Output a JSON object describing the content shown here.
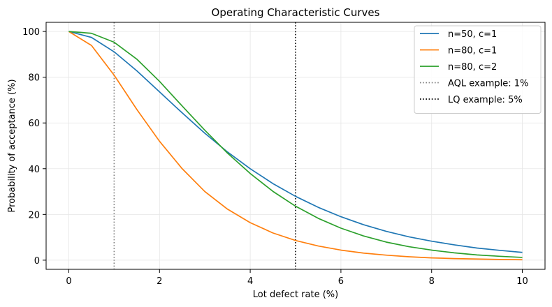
{
  "chart_data": {
    "type": "line",
    "title": "Operating Characteristic Curves",
    "xlabel": "Lot defect rate (%)",
    "ylabel": "Probability of acceptance (%)",
    "xlim": [
      -0.5,
      10.5
    ],
    "ylim": [
      -4,
      104
    ],
    "xticks": [
      0,
      2,
      4,
      6,
      8,
      10
    ],
    "yticks": [
      0,
      20,
      40,
      60,
      80,
      100
    ],
    "grid": true,
    "legend_position": "top-right",
    "series": [
      {
        "name": "n=50, c=1",
        "color": "#1f77b4",
        "x": [
          0,
          0.5,
          1,
          1.5,
          2,
          2.5,
          3,
          3.5,
          4,
          4.5,
          5,
          5.5,
          6,
          6.5,
          7,
          7.5,
          8,
          8.5,
          9,
          9.5,
          10
        ],
        "y": [
          100,
          97.4,
          91.1,
          82.8,
          73.6,
          64.4,
          55.5,
          47.3,
          40.0,
          33.5,
          27.9,
          23.1,
          19.0,
          15.5,
          12.6,
          10.2,
          8.3,
          6.7,
          5.3,
          4.3,
          3.4
        ]
      },
      {
        "name": "n=80, c=1",
        "color": "#ff7f0e",
        "x": [
          0,
          0.5,
          1,
          1.5,
          2,
          2.5,
          3,
          3.5,
          4,
          4.5,
          5,
          5.5,
          6,
          6.5,
          7,
          7.5,
          8,
          8.5,
          9,
          9.5,
          10
        ],
        "y": [
          100,
          93.9,
          80.9,
          65.9,
          52.0,
          40.0,
          30.0,
          22.3,
          16.4,
          11.9,
          8.6,
          6.2,
          4.4,
          3.1,
          2.2,
          1.5,
          1.0,
          0.7,
          0.5,
          0.3,
          0.2
        ]
      },
      {
        "name": "n=80, c=2",
        "color": "#2ca02c",
        "x": [
          0,
          0.5,
          1,
          1.5,
          2,
          2.5,
          3,
          3.5,
          4,
          4.5,
          5,
          5.5,
          6,
          6.5,
          7,
          7.5,
          8,
          8.5,
          9,
          9.5,
          10
        ],
        "y": [
          100,
          99.2,
          95.3,
          87.9,
          78.2,
          67.4,
          56.8,
          46.8,
          37.9,
          30.1,
          23.6,
          18.3,
          14.0,
          10.6,
          7.9,
          5.9,
          4.4,
          3.2,
          2.3,
          1.7,
          1.2
        ]
      }
    ],
    "reference_lines": [
      {
        "name": "AQL example: 1%",
        "x": 1,
        "color": "#808080",
        "style": "dotted"
      },
      {
        "name": "LQ example: 5%",
        "x": 5,
        "color": "#000000",
        "style": "dotted"
      }
    ]
  }
}
